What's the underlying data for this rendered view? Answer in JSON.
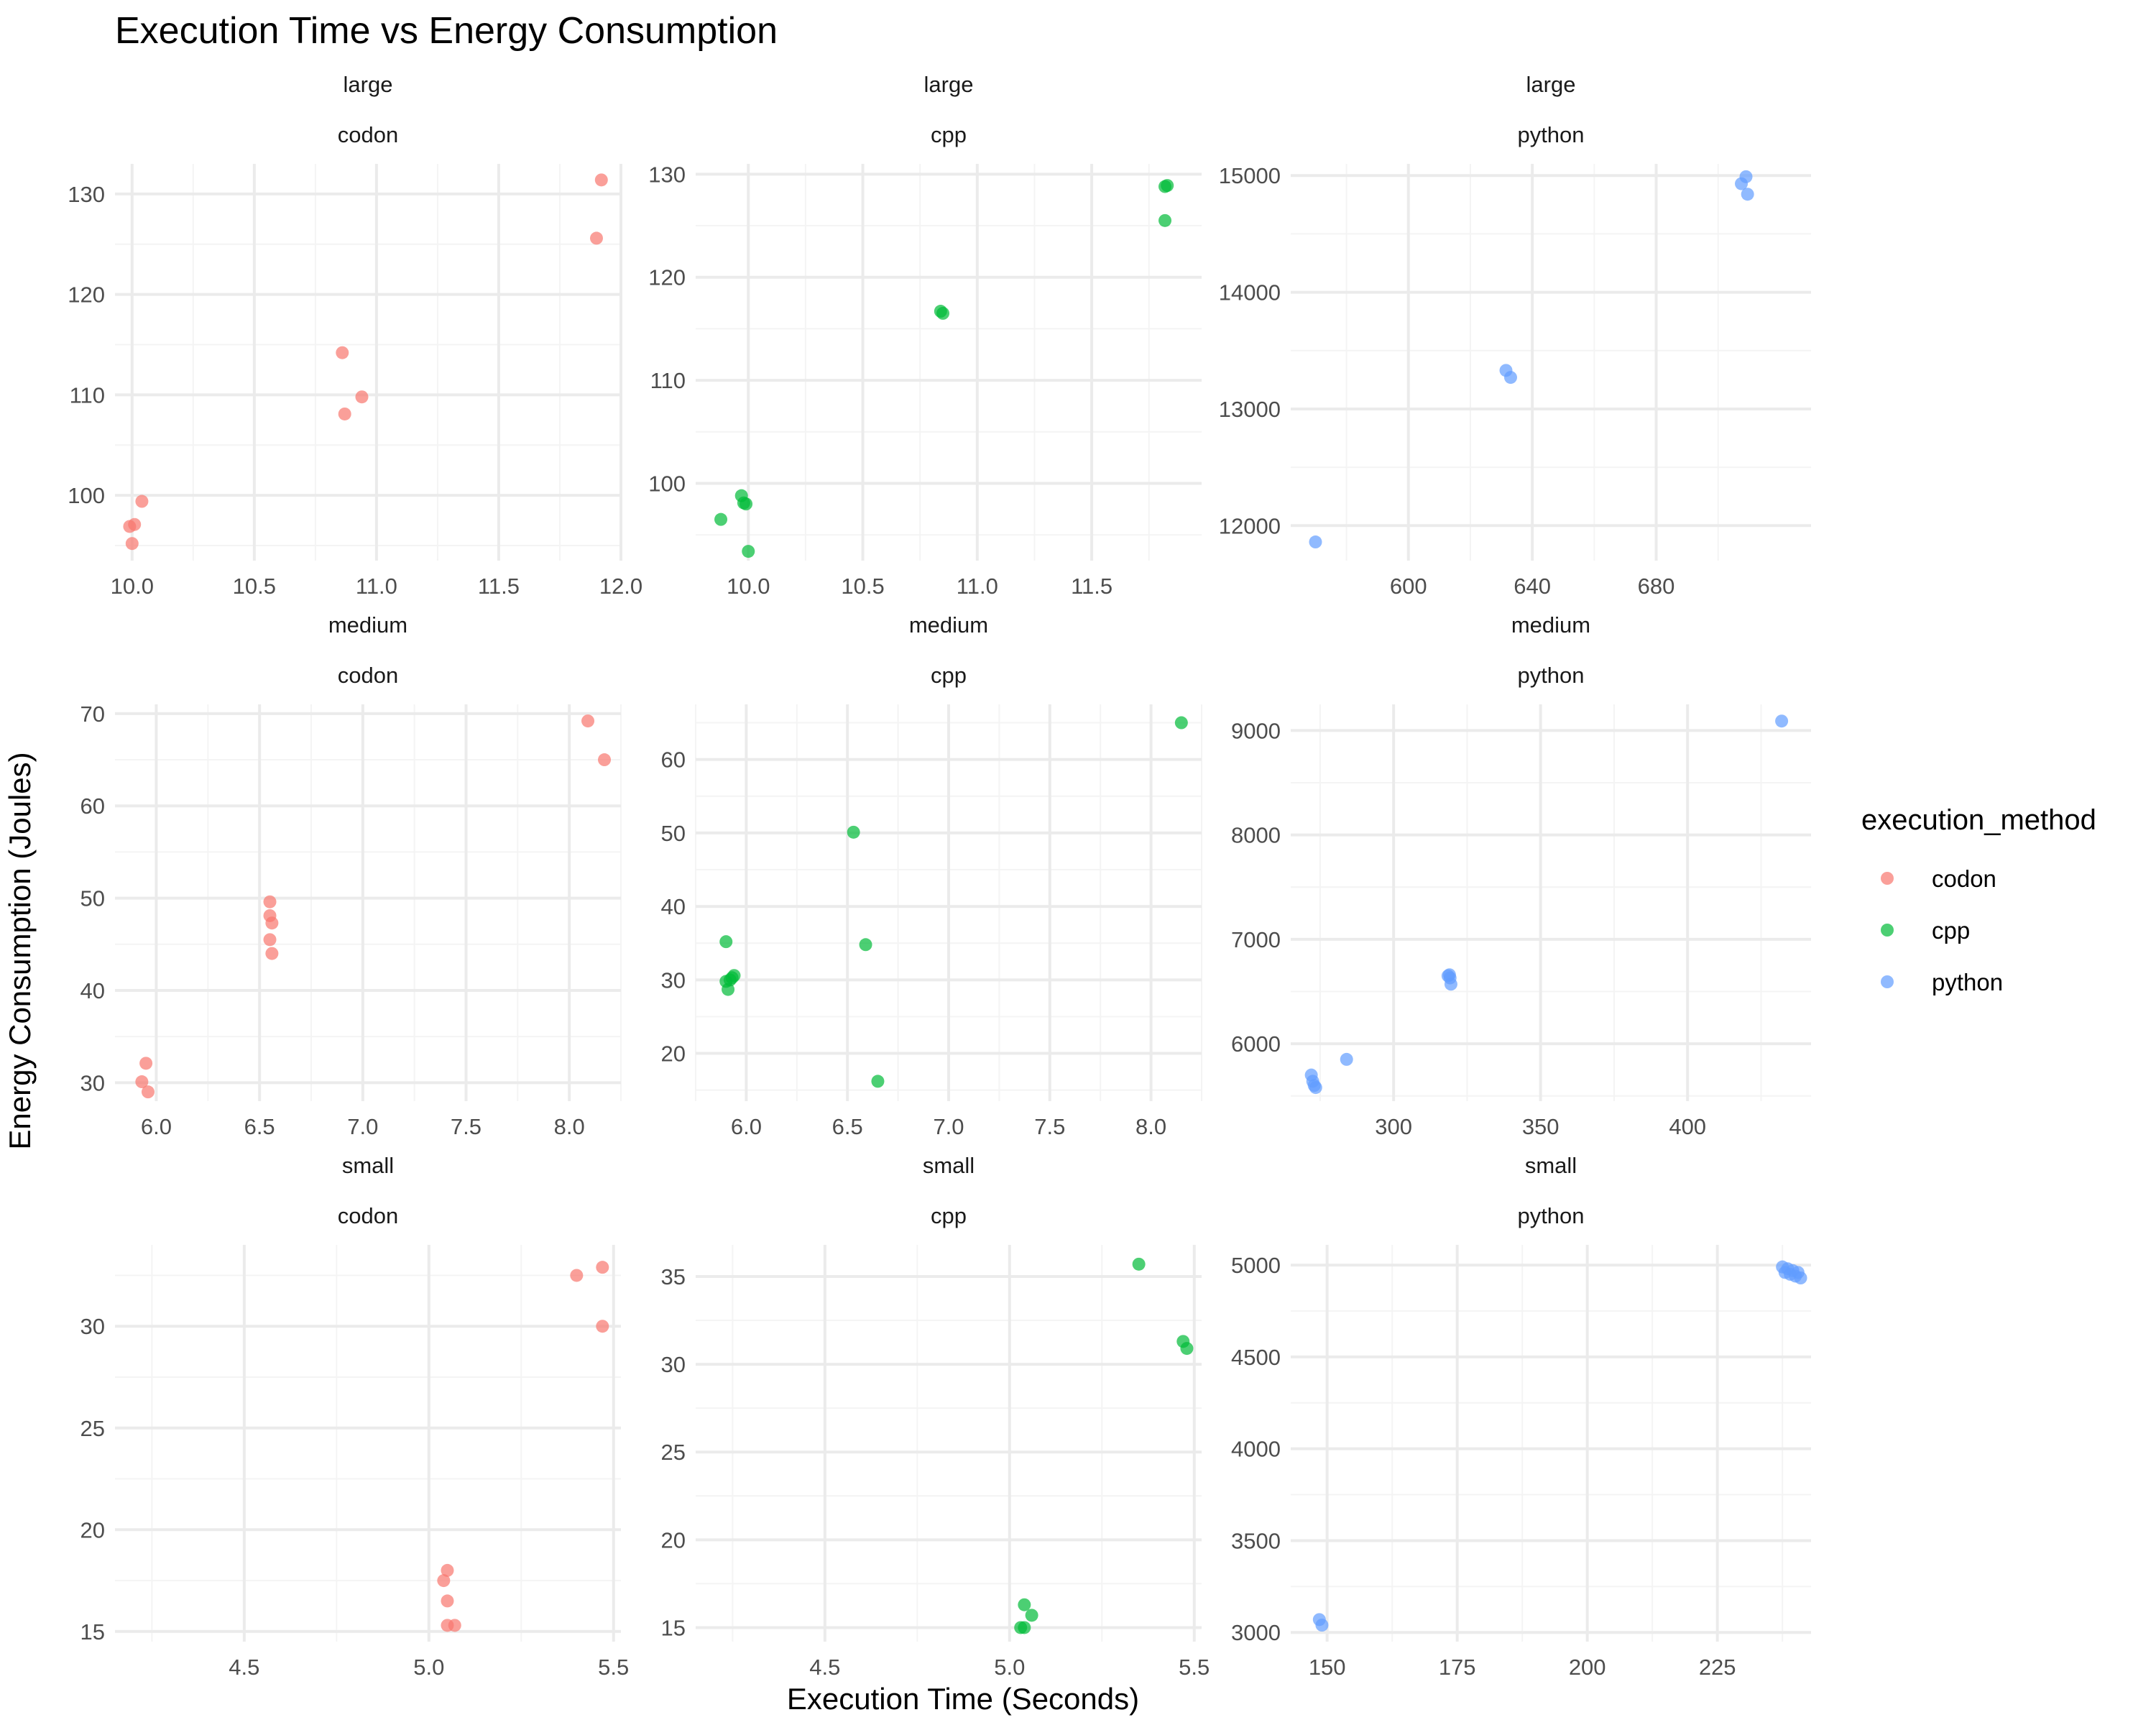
{
  "chart_data": {
    "type": "scatter",
    "title": "Execution Time vs Energy Consumption",
    "xlabel": "Execution Time (Seconds)",
    "ylabel": "Energy Consumption (Joules)",
    "grid": true,
    "legend": {
      "title": "execution_method",
      "placement": "right",
      "entries": [
        {
          "label": "codon",
          "color": "#F8766D"
        },
        {
          "label": "cpp",
          "color": "#00BA38"
        },
        {
          "label": "python",
          "color": "#619CFF"
        }
      ]
    },
    "panels": [
      {
        "size": "large",
        "method": "codon",
        "color": "#F8766D",
        "xlim": [
          9.93,
          12.0
        ],
        "ylim": [
          93.5,
          133.0
        ],
        "xticks": [
          10.0,
          10.5,
          11.0,
          11.5,
          12.0
        ],
        "xtick_labels": [
          "10.0",
          "10.5",
          "11.0",
          "11.5",
          "12.0"
        ],
        "yticks": [
          100,
          110,
          120,
          130
        ],
        "ytick_labels": [
          "100",
          "110",
          "120",
          "130"
        ],
        "points": [
          [
            10.04,
            99.4
          ],
          [
            9.99,
            96.9
          ],
          [
            10.01,
            97.1
          ],
          [
            10.0,
            95.2
          ],
          [
            10.86,
            114.2
          ],
          [
            10.94,
            109.8
          ],
          [
            10.87,
            108.1
          ],
          [
            11.9,
            125.6
          ],
          [
            11.92,
            131.4
          ]
        ]
      },
      {
        "size": "large",
        "method": "cpp",
        "color": "#00BA38",
        "xlim": [
          9.77,
          11.98
        ],
        "ylim": [
          92.5,
          131.0
        ],
        "xticks": [
          10.0,
          10.5,
          11.0,
          11.5
        ],
        "xtick_labels": [
          "10.0",
          "10.5",
          "11.0",
          "11.5"
        ],
        "yticks": [
          100,
          110,
          120,
          130
        ],
        "ytick_labels": [
          "100",
          "110",
          "120",
          "130"
        ],
        "points": [
          [
            9.88,
            96.5
          ],
          [
            9.97,
            98.8
          ],
          [
            9.98,
            98.1
          ],
          [
            9.99,
            98.0
          ],
          [
            10.0,
            93.4
          ],
          [
            10.84,
            116.7
          ],
          [
            10.85,
            116.5
          ],
          [
            11.82,
            128.8
          ],
          [
            11.83,
            128.9
          ],
          [
            11.82,
            125.5
          ]
        ]
      },
      {
        "size": "large",
        "method": "python",
        "color": "#619CFF",
        "xlim": [
          562.0,
          730.0
        ],
        "ylim": [
          11700,
          15100
        ],
        "xticks": [
          600,
          640,
          680
        ],
        "xtick_labels": [
          "600",
          "640",
          "680"
        ],
        "yticks": [
          12000,
          13000,
          14000,
          15000
        ],
        "ytick_labels": [
          "12000",
          "13000",
          "14000",
          "15000"
        ],
        "points": [
          [
            570.0,
            11860
          ],
          [
            631.5,
            13330
          ],
          [
            633.0,
            13270
          ],
          [
            707.5,
            14930
          ],
          [
            709.0,
            14990
          ],
          [
            709.5,
            14840
          ]
        ]
      },
      {
        "size": "medium",
        "method": "codon",
        "color": "#F8766D",
        "xlim": [
          5.8,
          8.25
        ],
        "ylim": [
          28.0,
          71.0
        ],
        "xticks": [
          6.0,
          6.5,
          7.0,
          7.5,
          8.0
        ],
        "xtick_labels": [
          "6.0",
          "6.5",
          "7.0",
          "7.5",
          "8.0"
        ],
        "yticks": [
          30,
          40,
          50,
          60,
          70
        ],
        "ytick_labels": [
          "30",
          "40",
          "50",
          "60",
          "70"
        ],
        "points": [
          [
            5.93,
            30.1
          ],
          [
            5.95,
            32.1
          ],
          [
            5.96,
            29.0
          ],
          [
            6.55,
            49.6
          ],
          [
            6.55,
            48.1
          ],
          [
            6.56,
            47.3
          ],
          [
            6.55,
            45.5
          ],
          [
            6.56,
            44.0
          ],
          [
            8.09,
            69.2
          ],
          [
            8.17,
            65.0
          ]
        ]
      },
      {
        "size": "medium",
        "method": "cpp",
        "color": "#00BA38",
        "xlim": [
          5.75,
          8.25
        ],
        "ylim": [
          13.5,
          67.5
        ],
        "xticks": [
          6.0,
          6.5,
          7.0,
          7.5,
          8.0
        ],
        "xtick_labels": [
          "6.0",
          "6.5",
          "7.0",
          "7.5",
          "8.0"
        ],
        "yticks": [
          20,
          30,
          40,
          50,
          60
        ],
        "ytick_labels": [
          "20",
          "30",
          "40",
          "50",
          "60"
        ],
        "points": [
          [
            5.9,
            35.2
          ],
          [
            5.9,
            29.8
          ],
          [
            5.91,
            28.7
          ],
          [
            5.92,
            30.0
          ],
          [
            5.93,
            30.3
          ],
          [
            5.94,
            30.6
          ],
          [
            6.53,
            50.1
          ],
          [
            6.59,
            34.8
          ],
          [
            6.65,
            16.2
          ],
          [
            8.15,
            65.0
          ]
        ]
      },
      {
        "size": "medium",
        "method": "python",
        "color": "#619CFF",
        "xlim": [
          265.0,
          442.0
        ],
        "ylim": [
          5450,
          9250
        ],
        "xticks": [
          300,
          350,
          400
        ],
        "xtick_labels": [
          "300",
          "350",
          "400"
        ],
        "yticks": [
          6000,
          7000,
          8000,
          9000
        ],
        "ytick_labels": [
          "6000",
          "7000",
          "8000",
          "9000"
        ],
        "points": [
          [
            272.0,
            5700
          ],
          [
            272.5,
            5640
          ],
          [
            273.0,
            5600
          ],
          [
            273.5,
            5580
          ],
          [
            284.0,
            5850
          ],
          [
            318.5,
            6650
          ],
          [
            319.0,
            6660
          ],
          [
            319.2,
            6630
          ],
          [
            319.5,
            6570
          ],
          [
            432.0,
            9090
          ]
        ]
      },
      {
        "size": "small",
        "method": "codon",
        "color": "#F8766D",
        "xlim": [
          4.15,
          5.52
        ],
        "ylim": [
          14.5,
          34.0
        ],
        "xticks": [
          4.5,
          5.0,
          5.5
        ],
        "xtick_labels": [
          "4.5",
          "5.0",
          "5.5"
        ],
        "yticks": [
          15,
          20,
          25,
          30
        ],
        "ytick_labels": [
          "15",
          "20",
          "25",
          "30"
        ],
        "points": [
          [
            5.04,
            17.5
          ],
          [
            5.05,
            18.0
          ],
          [
            5.05,
            16.5
          ],
          [
            5.05,
            15.3
          ],
          [
            5.07,
            15.3
          ],
          [
            5.4,
            32.5
          ],
          [
            5.47,
            32.9
          ],
          [
            5.47,
            30.0
          ]
        ]
      },
      {
        "size": "small",
        "method": "cpp",
        "color": "#00BA38",
        "xlim": [
          4.15,
          5.52
        ],
        "ylim": [
          14.2,
          36.8
        ],
        "xticks": [
          4.5,
          5.0,
          5.5
        ],
        "xtick_labels": [
          "4.5",
          "5.0",
          "5.5"
        ],
        "yticks": [
          15,
          20,
          25,
          30,
          35
        ],
        "ytick_labels": [
          "15",
          "20",
          "25",
          "30",
          "35"
        ],
        "points": [
          [
            5.03,
            15.0
          ],
          [
            5.04,
            15.0
          ],
          [
            5.04,
            16.3
          ],
          [
            5.06,
            15.7
          ],
          [
            5.35,
            35.7
          ],
          [
            5.47,
            31.3
          ],
          [
            5.48,
            30.9
          ]
        ]
      },
      {
        "size": "small",
        "method": "python",
        "color": "#619CFF",
        "xlim": [
          143.0,
          243.0
        ],
        "ylim": [
          2950,
          5110
        ],
        "xticks": [
          150,
          175,
          200,
          225
        ],
        "xtick_labels": [
          "150",
          "175",
          "200",
          "225"
        ],
        "yticks": [
          3000,
          3500,
          4000,
          4500,
          5000
        ],
        "ytick_labels": [
          "3000",
          "3500",
          "4000",
          "4500",
          "5000"
        ],
        "points": [
          [
            148.5,
            3070
          ],
          [
            149.0,
            3040
          ],
          [
            237.5,
            4990
          ],
          [
            238.0,
            4960
          ],
          [
            238.5,
            4980
          ],
          [
            239.0,
            4950
          ],
          [
            239.5,
            4970
          ],
          [
            240.0,
            4940
          ],
          [
            240.5,
            4960
          ],
          [
            241.0,
            4930
          ]
        ]
      }
    ]
  }
}
